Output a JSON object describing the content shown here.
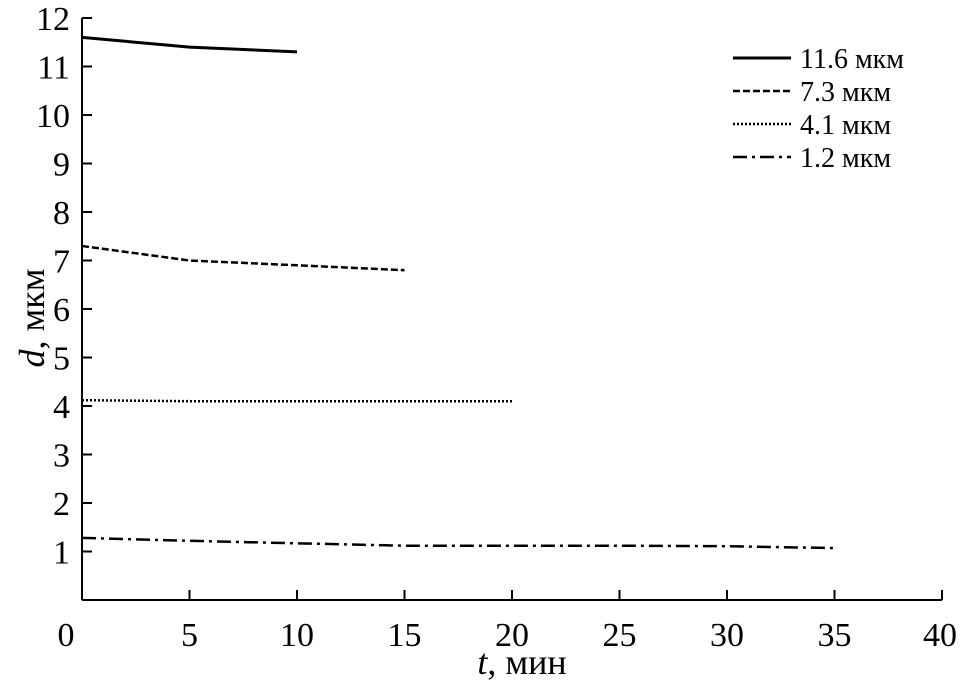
{
  "chart_data": {
    "type": "line",
    "title": "",
    "xlabel": {
      "var": "t",
      "unit": ", мин"
    },
    "ylabel": {
      "var": "d",
      "unit": ", мкм"
    },
    "xlim": [
      0,
      40
    ],
    "ylim": [
      0,
      12
    ],
    "xticks": [
      0,
      5,
      10,
      15,
      20,
      25,
      30,
      35,
      40
    ],
    "yticks": [
      1,
      2,
      3,
      4,
      5,
      6,
      7,
      8,
      9,
      10,
      11,
      12
    ],
    "y_zero_label": "0",
    "grid": false,
    "legend_position": "top-right",
    "series": [
      {
        "name": "11.6 мкм",
        "style": "solid",
        "x": [
          0,
          5,
          10
        ],
        "y": [
          11.6,
          11.4,
          11.3
        ]
      },
      {
        "name": "7.3 мкм",
        "style": "dashed",
        "x": [
          0,
          5,
          10,
          15
        ],
        "y": [
          7.3,
          7.0,
          6.9,
          6.8
        ]
      },
      {
        "name": "4.1 мкм",
        "style": "dotted",
        "x": [
          0,
          5,
          10,
          15,
          20
        ],
        "y": [
          4.12,
          4.1,
          4.1,
          4.1,
          4.1
        ]
      },
      {
        "name": "1.2 мкм",
        "style": "dashdot",
        "x": [
          0,
          5,
          10,
          15,
          20,
          25,
          30,
          35
        ],
        "y": [
          1.28,
          1.22,
          1.17,
          1.12,
          1.12,
          1.12,
          1.11,
          1.07
        ]
      }
    ]
  }
}
